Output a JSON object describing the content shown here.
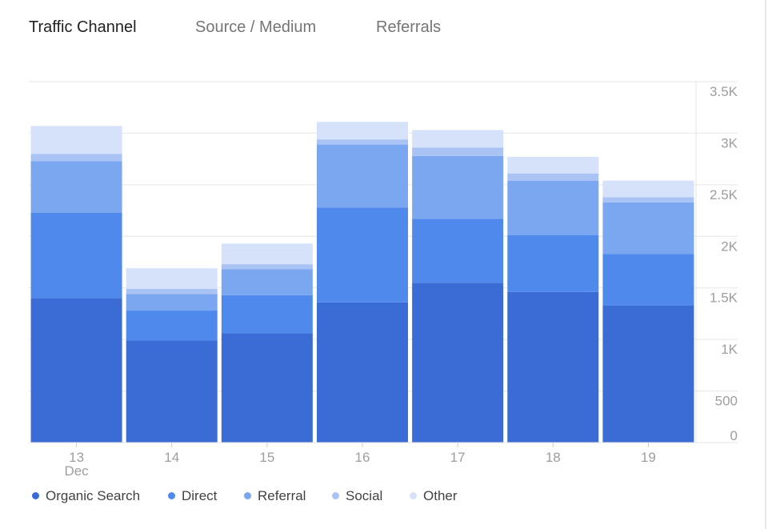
{
  "tabs": [
    {
      "label": "Traffic Channel",
      "active": true
    },
    {
      "label": "Source / Medium",
      "active": false
    },
    {
      "label": "Referrals",
      "active": false
    }
  ],
  "chart_data": {
    "type": "bar",
    "stacked": true,
    "title": "",
    "xlabel": "",
    "ylabel": "",
    "categories": [
      "13",
      "14",
      "15",
      "16",
      "17",
      "18",
      "19"
    ],
    "category_sublabels": [
      "Dec",
      "",
      "",
      "",
      "",
      "",
      ""
    ],
    "ylim": [
      0,
      3500
    ],
    "y_ticks": [
      0,
      500,
      1000,
      1500,
      2000,
      2500,
      3000,
      3500
    ],
    "y_tick_labels": [
      "0",
      "500",
      "1K",
      "1.5K",
      "2K",
      "2.5K",
      "3K",
      "3.5K"
    ],
    "grid": true,
    "legend_position": "bottom-left",
    "series": [
      {
        "name": "Organic Search",
        "color": "#3b6bd4",
        "values": [
          1400,
          990,
          1060,
          1360,
          1550,
          1460,
          1330
        ]
      },
      {
        "name": "Direct",
        "color": "#4f89ec",
        "values": [
          830,
          290,
          370,
          920,
          620,
          550,
          500
        ]
      },
      {
        "name": "Referral",
        "color": "#7ba6f0",
        "values": [
          500,
          160,
          250,
          610,
          610,
          530,
          500
        ]
      },
      {
        "name": "Social",
        "color": "#a9c3f5",
        "values": [
          70,
          50,
          50,
          50,
          80,
          70,
          50
        ]
      },
      {
        "name": "Other",
        "color": "#d5e2f9",
        "values": [
          270,
          200,
          200,
          170,
          170,
          160,
          160
        ]
      }
    ]
  }
}
